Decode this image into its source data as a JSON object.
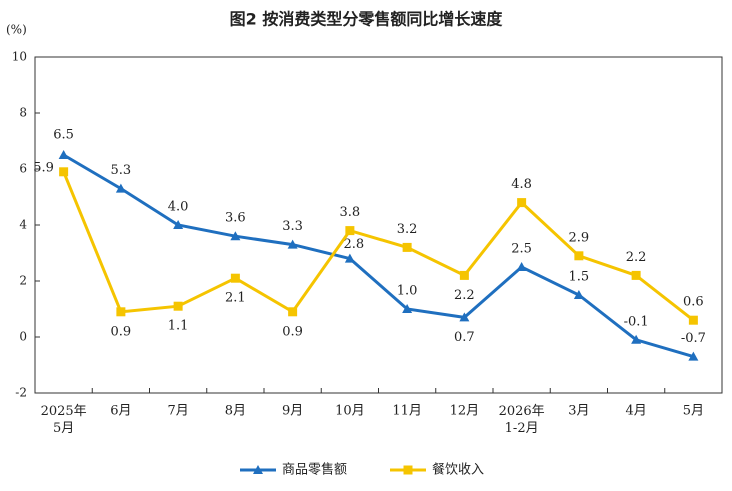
{
  "chart_data": {
    "type": "line",
    "title": "图2  按消费类型分零售额同比增长速度",
    "y_unit": "(%)",
    "categories": [
      "2025年\n5月",
      "6月",
      "7月",
      "8月",
      "9月",
      "10月",
      "11月",
      "12月",
      "2026年\n1-2月",
      "3月",
      "4月",
      "5月"
    ],
    "series": [
      {
        "name": "商品零售额",
        "color": "#1f6fbf",
        "marker": "triangle",
        "values": [
          6.5,
          5.3,
          4.0,
          3.6,
          3.3,
          2.8,
          1.0,
          0.7,
          2.5,
          1.5,
          -0.1,
          -0.7
        ],
        "value_labels": [
          "6.5",
          "5.3",
          "4.0",
          "3.6",
          "3.3",
          "2.8",
          "1.0",
          "0.7",
          "2.5",
          "1.5",
          "-0.1",
          "-0.7"
        ]
      },
      {
        "name": "餐饮收入",
        "color": "#f5c400",
        "marker": "square",
        "values": [
          5.9,
          0.9,
          1.1,
          2.1,
          0.9,
          3.8,
          3.2,
          2.2,
          4.8,
          2.9,
          2.2,
          0.6
        ],
        "value_labels": [
          "5.9",
          "0.9",
          "1.1",
          "2.1",
          "0.9",
          "3.8",
          "3.2",
          "2.2",
          "4.8",
          "2.9",
          "2.2",
          "0.6"
        ]
      }
    ],
    "ylim": [
      -2,
      10
    ],
    "yticks": [
      -2,
      0,
      2,
      4,
      6,
      8,
      10
    ],
    "legend": "bottom"
  }
}
